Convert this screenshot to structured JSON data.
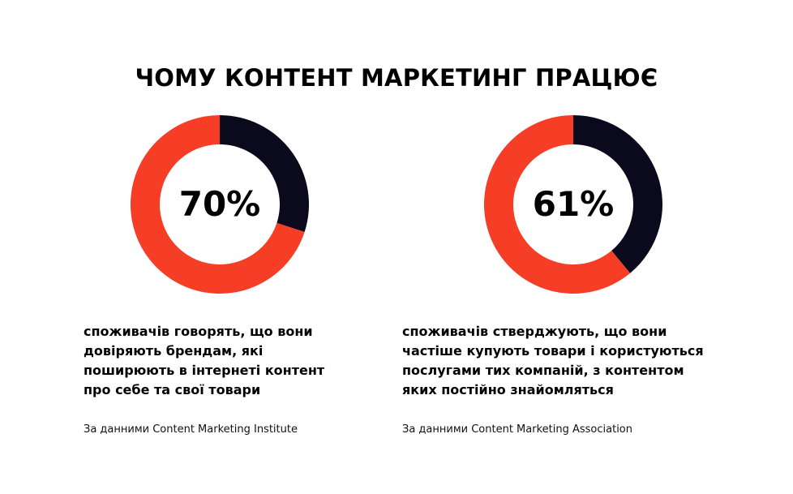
{
  "title": "ЧОМУ КОНТЕНТ МАРКЕТИНГ ПРАЦЮЄ",
  "colors": {
    "accent": "#f63d26",
    "dark": "#0a0a1c",
    "text": "#000000",
    "background": "#ffffff"
  },
  "chart_data": [
    {
      "type": "pie",
      "variant": "donut",
      "value_label": "70%",
      "segments": [
        {
          "value": 70,
          "color": "#f63d26"
        },
        {
          "value": 30,
          "color": "#0a0a1c"
        }
      ]
    },
    {
      "type": "pie",
      "variant": "donut",
      "value_label": "61%",
      "segments": [
        {
          "value": 61,
          "color": "#f63d26"
        },
        {
          "value": 39,
          "color": "#0a0a1c"
        }
      ]
    }
  ],
  "panels": [
    {
      "description_lines": [
        "споживачів говорять, що вони",
        "довіряють брендам, які",
        "поширюють в інтернеті контент",
        "про себе та свої товари"
      ],
      "source": "За данними Content Marketing Institute"
    },
    {
      "description_lines": [
        "споживачів стверджують, що вони",
        "частіше купують товари і користуються",
        "послугами тих компаній, з контентом",
        "яких постійно знайомляться"
      ],
      "source": "За данними Content Marketing Association"
    }
  ]
}
